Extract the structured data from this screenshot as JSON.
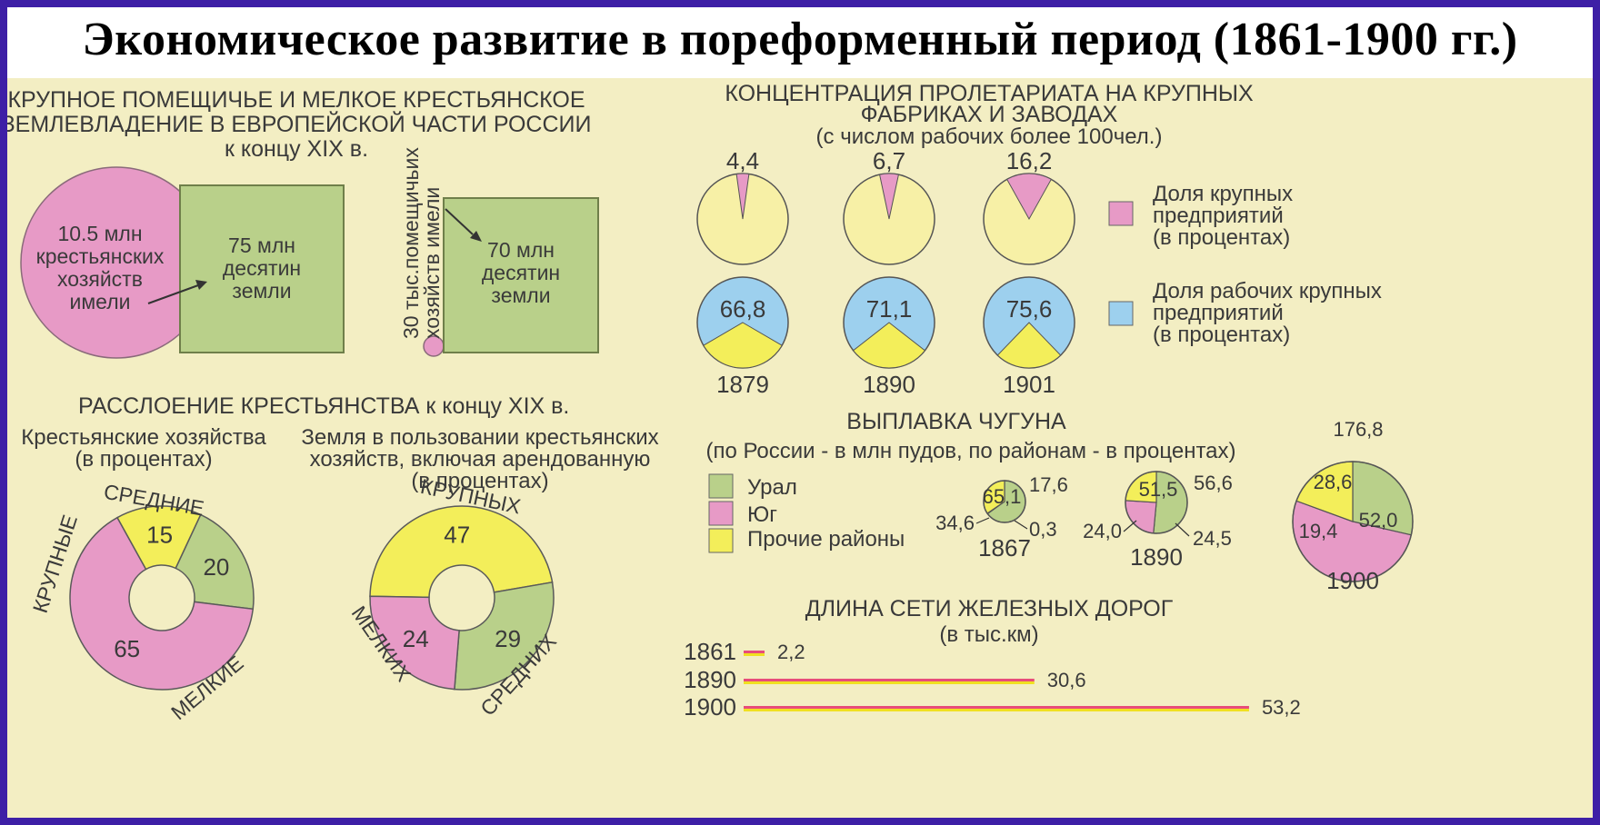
{
  "title": "Экономическое развитие в пореформенный период (1861-1900 гг.)",
  "colors": {
    "frame": "#3d1fa6",
    "background": "#f3eec3",
    "pink": "#e79ac6",
    "green": "#b9d08a",
    "yellow": "#f3ee5a",
    "blue": "#9dd0ee",
    "pale_yellow": "#f7f0a6",
    "rail_red": "#e84c7a",
    "rail_yellow": "#f0e020"
  },
  "land": {
    "heading_lines": [
      "КРУПНОЕ ПОМЕЩИЧЬЕ И МЕЛКОЕ КРЕСТЬЯНСКОЕ",
      "ЗЕМЛЕВЛАДЕНИЕ В ЕВРОПЕЙСКОЙ ЧАСТИ РОССИИ",
      "к концу XIX в."
    ],
    "peasant_circle_lines": [
      "10.5 млн",
      "крестьянских",
      "хозяйств",
      "имели"
    ],
    "peasant_square_lines": [
      "75 млн",
      "десятин",
      "земли"
    ],
    "landlord_vertical_lines": [
      "30 тыс.помещичьих",
      "хозяйств имели"
    ],
    "landlord_square_lines": [
      "70 млн",
      "десятин",
      "земли"
    ]
  },
  "stratification": {
    "heading": "РАССЛОЕНИЕ КРЕСТЬЯНСТВА к концу XIX в.",
    "households_heading_lines": [
      "Крестьянские хозяйства",
      "(в процентах)"
    ],
    "land_heading_lines": [
      "Земля в пользовании крестьянских",
      "хозяйств, включая арендованную",
      "(в процентах)"
    ],
    "households_labels": [
      "СРЕДНИЕ",
      "КРУПНЫЕ",
      "МЕЛКИЕ"
    ],
    "land_labels": [
      "КРУПНЫХ",
      "МЕЛКИХ",
      "СРЕДНИХ"
    ]
  },
  "proletariat": {
    "heading_lines": [
      "КОНЦЕНТРАЦИЯ ПРОЛЕТАРИАТА НА КРУПНЫХ",
      "ФАБРИКАХ И ЗАВОДАХ",
      "(с числом рабочих более 100чел.)"
    ],
    "legend": [
      {
        "label_lines": [
          "Доля крупных",
          "предприятий",
          "(в процентах)"
        ],
        "color": "#e79ac6"
      },
      {
        "label_lines": [
          "Доля рабочих крупных",
          "предприятий",
          "(в процентах)"
        ],
        "color": "#9dd0ee"
      }
    ]
  },
  "iron": {
    "heading_lines": [
      "ВЫПЛАВКА ЧУГУНА",
      "(по России - в млн пудов, по районам - в процентах)"
    ],
    "legend": [
      {
        "label": "Урал",
        "color": "#b9d08a"
      },
      {
        "label": "Юг",
        "color": "#e79ac6"
      },
      {
        "label": "Прочие районы",
        "color": "#f3ee5a"
      }
    ]
  },
  "rail": {
    "heading_lines": [
      "ДЛИНА СЕТИ ЖЕЛЕЗНЫХ  ДОРОГ",
      "(в тыс.км)"
    ]
  },
  "chart_data": [
    {
      "type": "pie",
      "title": "Крестьянские хозяйства (в процентах)",
      "categories": [
        "СРЕДНИЕ",
        "МЕЛКИЕ",
        "КРУПНЫЕ"
      ],
      "values": [
        20,
        65,
        15
      ],
      "value_labels": [
        "20",
        "65",
        "15"
      ]
    },
    {
      "type": "pie",
      "title": "Земля в пользовании крестьянских хозяйств, включая арендованную (в процентах)",
      "categories": [
        "КРУПНЫХ",
        "СРЕДНИХ",
        "МЕЛКИХ"
      ],
      "values": [
        47,
        29,
        24
      ],
      "value_labels": [
        "47",
        "29",
        "24"
      ]
    },
    {
      "type": "pie",
      "title": "Доля крупных предприятий (в процентах)",
      "categories": [
        "1879",
        "1890",
        "1901"
      ],
      "values": [
        4.4,
        6.7,
        16.2
      ],
      "value_labels": [
        "4,4",
        "6,7",
        "16,2"
      ]
    },
    {
      "type": "pie",
      "title": "Доля рабочих крупных предприятий (в процентах)",
      "categories": [
        "1879",
        "1890",
        "1901"
      ],
      "values": [
        66.8,
        71.1,
        75.6
      ],
      "value_labels": [
        "66,8",
        "71,1",
        "75,6"
      ]
    },
    {
      "type": "pie",
      "title": "ВЫПЛАВКА ЧУГУНА",
      "series": [
        {
          "year": "1867",
          "total": 17.6,
          "total_label": "17,6",
          "values": [
            65.1,
            0.3,
            34.6
          ],
          "value_labels": [
            "65,1",
            "0,3",
            "34,6"
          ]
        },
        {
          "year": "1890",
          "total": 56.6,
          "total_label": "56,6",
          "values": [
            51.5,
            24.5,
            24.0
          ],
          "value_labels": [
            "51,5",
            "24,5",
            "24,0"
          ]
        },
        {
          "year": "1900",
          "total": 176.8,
          "total_label": "176,8",
          "values": [
            28.6,
            52.0,
            19.4
          ],
          "value_labels": [
            "28,6",
            "52,0",
            "19,4"
          ]
        }
      ],
      "categories": [
        "Урал",
        "Юг",
        "Прочие районы"
      ]
    },
    {
      "type": "bar",
      "title": "ДЛИНА СЕТИ ЖЕЛЕЗНЫХ  ДОРОГ",
      "categories": [
        "1861",
        "1890",
        "1900"
      ],
      "values": [
        2.2,
        30.6,
        53.2
      ],
      "value_labels": [
        "2,2",
        "30,6",
        "53,2"
      ]
    }
  ]
}
